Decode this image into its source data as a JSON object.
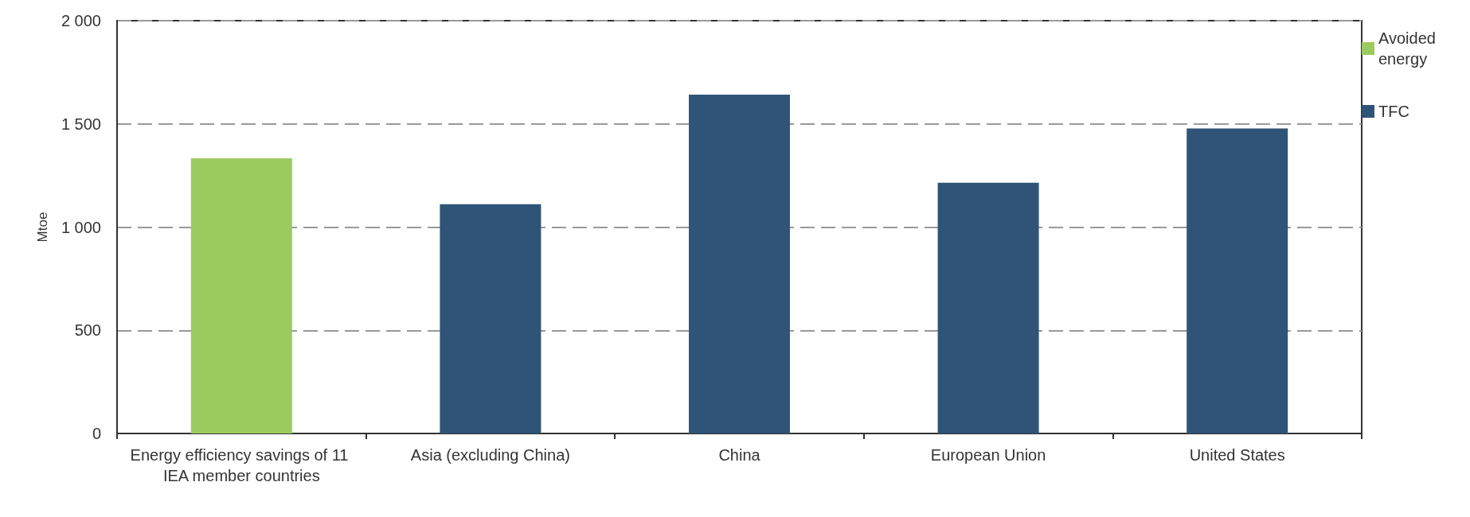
{
  "chart_data": {
    "type": "bar",
    "ylabel": "Mtoe",
    "categories": [
      "Energy efficiency savings of 11 IEA member countries",
      "Asia (excluding China)",
      "China",
      "European Union",
      "United States"
    ],
    "series": [
      {
        "name": "Avoided energy",
        "color": "#9bcb5f",
        "values": [
          1333,
          null,
          null,
          null,
          null
        ]
      },
      {
        "name": "TFC",
        "color": "#2f5477",
        "values": [
          null,
          1111,
          1642,
          1215,
          1478
        ]
      }
    ],
    "ylim": [
      0,
      2000
    ],
    "yticks": [
      0,
      {
        "value": 500,
        "label": "500"
      },
      {
        "value": 1000,
        "label": "1 000"
      },
      {
        "value": 1500,
        "label": "1 500"
      },
      {
        "value": 2000,
        "label": "2 000"
      }
    ],
    "grid": "y",
    "legend": "right"
  }
}
